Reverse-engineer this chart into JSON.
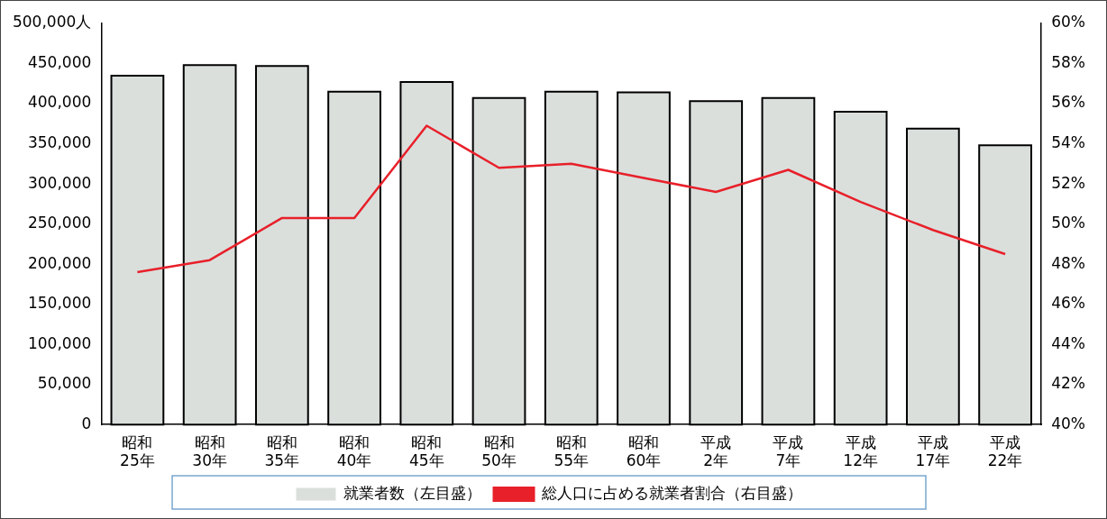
{
  "chart_data": {
    "type": "bar",
    "categories": [
      "昭和25年",
      "昭和30年",
      "昭和35年",
      "昭和40年",
      "昭和45年",
      "昭和50年",
      "昭和55年",
      "昭和60年",
      "平成2年",
      "平成7年",
      "平成12年",
      "平成17年",
      "平成22年"
    ],
    "series": [
      {
        "name": "就業者数（左目盛）",
        "color": "#dadfdc",
        "values": [
          435000,
          448000,
          447000,
          415000,
          427000,
          407000,
          415000,
          414000,
          403000,
          407000,
          390000,
          369000,
          348000
        ]
      },
      {
        "name": "総人口に占める就業者割合（右目盛）",
        "type": "line",
        "axis": "y2",
        "color": "#e8202a",
        "values": [
          47.6,
          48.2,
          50.3,
          50.3,
          54.9,
          52.8,
          53.0,
          52.3,
          51.6,
          52.7,
          51.1,
          49.7,
          48.5
        ]
      }
    ],
    "ylim": [
      0,
      500000
    ],
    "yticks": [
      0,
      {
        "value": 50000,
        "label": "50,000"
      },
      {
        "value": 100000,
        "label": "100,000"
      },
      {
        "value": 150000,
        "label": "150,000"
      },
      {
        "value": 200000,
        "label": "200,000"
      },
      {
        "value": 250000,
        "label": "250,000"
      },
      {
        "value": 300000,
        "label": "300,000"
      },
      {
        "value": 350000,
        "label": "350,000"
      },
      {
        "value": 400000,
        "label": "400,000"
      },
      {
        "value": 450000,
        "label": "450,000"
      },
      {
        "value": 500000,
        "label": "500,000人"
      }
    ],
    "y2lim": [
      40,
      60
    ],
    "y2ticks": [
      {
        "value": 40,
        "label": "40%"
      },
      {
        "value": 42,
        "label": "42%"
      },
      {
        "value": 44,
        "label": "44%"
      },
      {
        "value": 46,
        "label": "46%"
      },
      {
        "value": 48,
        "label": "48%"
      },
      {
        "value": 50,
        "label": "50%"
      },
      {
        "value": 52,
        "label": "52%"
      },
      {
        "value": 54,
        "label": "54%"
      },
      {
        "value": 56,
        "label": "56%"
      },
      {
        "value": 58,
        "label": "58%"
      },
      {
        "value": 60,
        "label": "60%"
      }
    ],
    "legend": "bottom",
    "marker": "none",
    "line_style": "solid"
  }
}
